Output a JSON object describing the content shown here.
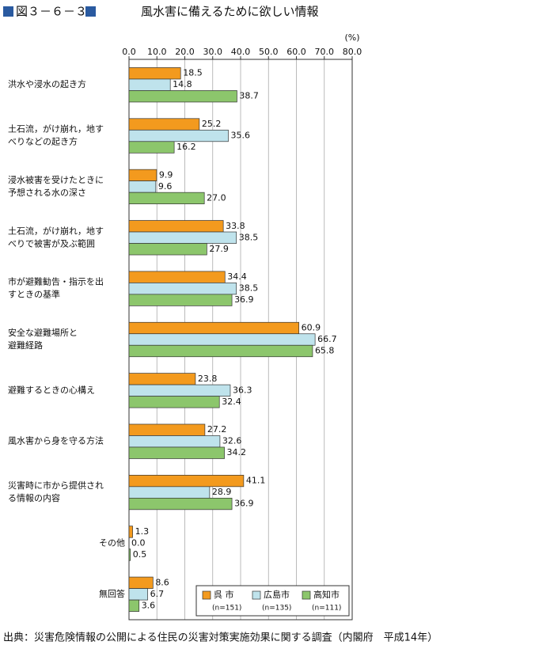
{
  "chart_data": {
    "type": "bar",
    "figure_label": "図３－６－３",
    "title": "風水害に備えるために欲しい情報",
    "unit": "(%)",
    "categories": [
      [
        "洪水や浸水の起き方"
      ],
      [
        "土石流，がけ崩れ，地す",
        "べりなどの起き方"
      ],
      [
        "浸水被害を受けたときに",
        "予想される水の深さ"
      ],
      [
        "土石流，がけ崩れ，地す",
        "べりで被害が及ぶ範囲"
      ],
      [
        "市が避難勧告・指示を出",
        "すときの基準"
      ],
      [
        "安全な避難場所と",
        "避難経路"
      ],
      [
        "避難するときの心構え"
      ],
      [
        "風水害から身を守る方法"
      ],
      [
        "災害時に市から提供され",
        "る情報の内容"
      ],
      [
        "その他"
      ],
      [
        "無回答"
      ]
    ],
    "series": [
      {
        "name": "呉 市",
        "sample": "(n=151)",
        "color": "#f39a1e",
        "values": [
          18.5,
          25.2,
          9.9,
          33.8,
          34.4,
          60.9,
          23.8,
          27.2,
          41.1,
          1.3,
          8.6
        ],
        "value_labels": [
          "18.5",
          "25.2",
          "9.9",
          "33.8",
          "34.4",
          "60.9",
          "23.8",
          "27.2",
          "41.1",
          "1.3",
          "8.6"
        ]
      },
      {
        "name": "広島市",
        "sample": "(n=135)",
        "color": "#bfe3ec",
        "values": [
          14.8,
          35.6,
          9.6,
          38.5,
          38.5,
          66.7,
          36.3,
          32.6,
          28.9,
          0,
          6.7
        ],
        "value_labels": [
          "14.8",
          "35.6",
          "9.6",
          "38.5",
          "38.5",
          "66.7",
          "36.3",
          "32.6",
          "28.9",
          "0.0",
          "6.7"
        ]
      },
      {
        "name": "高知市",
        "sample": "(n=111)",
        "color": "#8cc66c",
        "values": [
          38.7,
          16.2,
          27.0,
          27.9,
          36.9,
          65.8,
          32.4,
          34.2,
          36.9,
          0.5,
          3.6
        ],
        "value_labels": [
          "38.7",
          "16.2",
          "27.0",
          "27.9",
          "36.9",
          "65.8",
          "32.4",
          "34.2",
          "36.9",
          "0.5",
          "3.6"
        ]
      }
    ],
    "xlim": [
      0,
      80
    ],
    "xticks": [
      {
        "value": 0,
        "label": "0.0"
      },
      {
        "value": 10,
        "label": "10.0"
      },
      {
        "value": 20,
        "label": "20.0"
      },
      {
        "value": 30,
        "label": "30.0"
      },
      {
        "value": 40,
        "label": "40.0"
      },
      {
        "value": 50,
        "label": "50.0"
      },
      {
        "value": 60,
        "label": "60.0"
      },
      {
        "value": 70,
        "label": "70.0"
      },
      {
        "value": 80,
        "label": "80.0"
      }
    ],
    "grid": true,
    "legend": "bottom-right",
    "source": "出典：災害危険情報の公開による住民の災害対策実施効果に関する調査（内閣府　平成14年）"
  }
}
